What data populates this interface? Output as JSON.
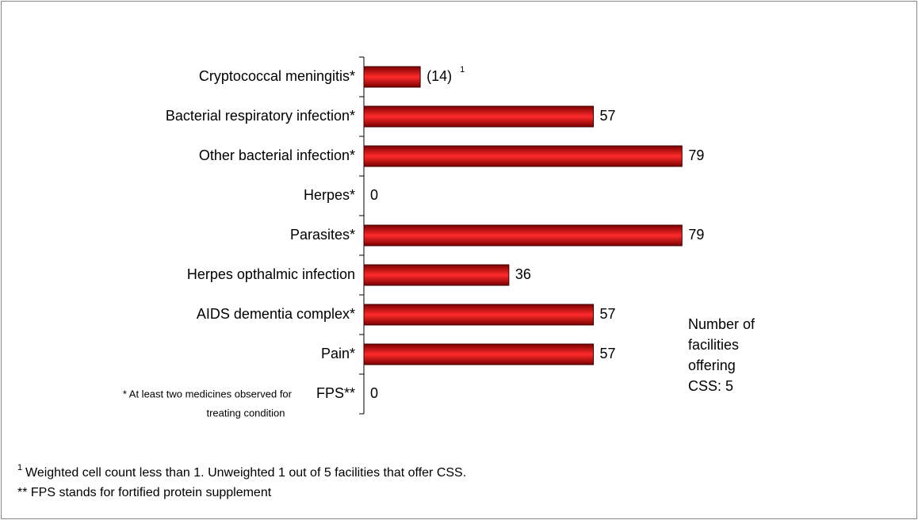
{
  "chart_data": {
    "type": "bar",
    "orientation": "horizontal",
    "categories": [
      "Cryptococcal meningitis*",
      "Bacterial respiratory infection*",
      "Other bacterial infection*",
      "Herpes*",
      "Parasites*",
      "Herpes opthalmic infection",
      "AIDS dementia complex*",
      "Pain*",
      "FPS**"
    ],
    "values": [
      14,
      57,
      79,
      0,
      79,
      36,
      57,
      57,
      0
    ],
    "value_labels": [
      "(14)",
      "57",
      "79",
      "0",
      "79",
      "36",
      "57",
      "57",
      "0"
    ],
    "color": "#c00000",
    "bar_annotation": "1",
    "category_note": [
      "* At least two medicines observed for",
      "treating condition"
    ],
    "side_note": [
      "Number of",
      "facilities",
      "offering",
      "CSS: 5"
    ],
    "footnotes": [
      {
        "mark": "1",
        "text": "Weighted cell count less than 1.  Unweighted 1 out of 5 facilities that offer CSS."
      },
      {
        "text": "** FPS stands for fortified protein supplement"
      }
    ]
  }
}
